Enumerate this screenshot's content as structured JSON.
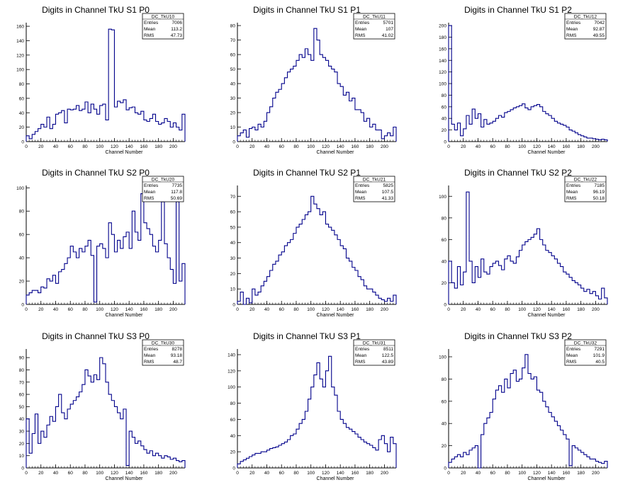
{
  "chart_data": [
    {
      "type": "histogram",
      "title": "Digits in Channel TkU S1 P0",
      "stats_name": "DC_TkU10",
      "entries": "7006",
      "mean": "113.2",
      "rms": "47.73",
      "xlabel": "Channel Number",
      "xlim": [
        0,
        216
      ],
      "xticks": [
        0,
        20,
        40,
        60,
        80,
        100,
        120,
        140,
        160,
        180,
        200
      ],
      "ylim": [
        0,
        165
      ],
      "yticks": [
        0,
        20,
        40,
        60,
        80,
        100,
        120,
        140,
        160
      ],
      "x_bin_starts": [
        0,
        4,
        8,
        12,
        16,
        20,
        24,
        28,
        32,
        36,
        40,
        44,
        48,
        52,
        56,
        60,
        64,
        68,
        72,
        76,
        80,
        84,
        88,
        92,
        96,
        100,
        104,
        108,
        112,
        116,
        120,
        124,
        128,
        132,
        136,
        140,
        144,
        148,
        152,
        156,
        160,
        164,
        168,
        172,
        176,
        180,
        184,
        188,
        192,
        196,
        200,
        204,
        208,
        212
      ],
      "values": [
        8,
        4,
        10,
        14,
        18,
        24,
        20,
        34,
        18,
        24,
        38,
        40,
        43,
        26,
        45,
        44,
        45,
        50,
        43,
        45,
        55,
        40,
        52,
        45,
        38,
        50,
        52,
        30,
        156,
        155,
        48,
        56,
        54,
        58,
        44,
        47,
        48,
        40,
        38,
        42,
        30,
        28,
        32,
        38,
        28,
        24,
        26,
        32,
        28,
        20,
        26,
        20,
        16,
        38
      ],
      "bin_width": 4
    },
    {
      "type": "histogram",
      "title": "Digits in Channel TkU S1 P1",
      "stats_name": "DC_TkU11",
      "entries": "5701",
      "mean": "107",
      "rms": "41.02",
      "xlabel": "Channel Number",
      "xlim": [
        0,
        216
      ],
      "xticks": [
        0,
        20,
        40,
        60,
        80,
        100,
        120,
        140,
        160,
        180,
        200
      ],
      "ylim": [
        0,
        82
      ],
      "yticks": [
        0,
        10,
        20,
        30,
        40,
        50,
        60,
        70,
        80
      ],
      "x_bin_starts": [
        0,
        4,
        8,
        12,
        16,
        20,
        24,
        28,
        32,
        36,
        40,
        44,
        48,
        52,
        56,
        60,
        64,
        68,
        72,
        76,
        80,
        84,
        88,
        92,
        96,
        100,
        104,
        108,
        112,
        116,
        120,
        124,
        128,
        132,
        136,
        140,
        144,
        148,
        152,
        156,
        160,
        164,
        168,
        172,
        176,
        180,
        184,
        188,
        192,
        196,
        200,
        204,
        208,
        212
      ],
      "values": [
        4,
        6,
        8,
        3,
        9,
        10,
        8,
        12,
        10,
        14,
        20,
        24,
        30,
        34,
        36,
        40,
        44,
        48,
        50,
        52,
        56,
        60,
        58,
        64,
        60,
        56,
        78,
        70,
        60,
        58,
        56,
        52,
        50,
        48,
        40,
        38,
        32,
        34,
        28,
        30,
        22,
        22,
        20,
        14,
        16,
        10,
        12,
        8,
        8,
        2,
        4,
        6,
        4,
        10
      ],
      "bin_width": 4
    },
    {
      "type": "histogram",
      "title": "Digits in Channel TkU S1 P2",
      "stats_name": "DC_TkU12",
      "entries": "7042",
      "mean": "92.87",
      "rms": "49.55",
      "xlabel": "Channel Number",
      "xlim": [
        0,
        216
      ],
      "xticks": [
        0,
        20,
        40,
        60,
        80,
        100,
        120,
        140,
        160,
        180,
        200
      ],
      "ylim": [
        0,
        205
      ],
      "yticks": [
        0,
        20,
        40,
        60,
        80,
        100,
        120,
        140,
        160,
        180,
        200
      ],
      "x_bin_starts": [
        0,
        4,
        8,
        12,
        16,
        20,
        24,
        28,
        32,
        36,
        40,
        44,
        48,
        52,
        56,
        60,
        64,
        68,
        72,
        76,
        80,
        84,
        88,
        92,
        96,
        100,
        104,
        108,
        112,
        116,
        120,
        124,
        128,
        132,
        136,
        140,
        144,
        148,
        152,
        156,
        160,
        164,
        168,
        172,
        176,
        180,
        184,
        188,
        192,
        196,
        200,
        204,
        208,
        212
      ],
      "values": [
        200,
        30,
        20,
        32,
        10,
        22,
        45,
        30,
        56,
        40,
        48,
        25,
        38,
        30,
        32,
        35,
        40,
        45,
        42,
        50,
        52,
        55,
        58,
        60,
        62,
        65,
        58,
        55,
        60,
        62,
        64,
        60,
        52,
        48,
        45,
        40,
        35,
        32,
        30,
        28,
        25,
        20,
        18,
        15,
        12,
        10,
        8,
        6,
        6,
        5,
        4,
        3,
        4,
        3
      ],
      "bin_width": 4
    },
    {
      "type": "histogram",
      "title": "Digits in Channel TkU S2 P0",
      "stats_name": "DC_TkU20",
      "entries": "7735",
      "mean": "117.8",
      "rms": "50.69",
      "xlabel": "Channel Number",
      "xlim": [
        0,
        216
      ],
      "xticks": [
        0,
        20,
        40,
        60,
        80,
        100,
        120,
        140,
        160,
        180,
        200
      ],
      "ylim": [
        0,
        102
      ],
      "yticks": [
        0,
        20,
        40,
        60,
        80,
        100
      ],
      "x_bin_starts": [
        0,
        4,
        8,
        12,
        16,
        20,
        24,
        28,
        32,
        36,
        40,
        44,
        48,
        52,
        56,
        60,
        64,
        68,
        72,
        76,
        80,
        84,
        88,
        92,
        96,
        100,
        104,
        108,
        112,
        116,
        120,
        124,
        128,
        132,
        136,
        140,
        144,
        148,
        152,
        156,
        160,
        164,
        168,
        172,
        176,
        180,
        184,
        188,
        192,
        196,
        200,
        204,
        208,
        212
      ],
      "values": [
        8,
        10,
        12,
        12,
        10,
        15,
        14,
        22,
        20,
        25,
        18,
        28,
        30,
        35,
        40,
        50,
        45,
        40,
        48,
        45,
        50,
        55,
        42,
        2,
        50,
        52,
        48,
        40,
        70,
        60,
        45,
        55,
        48,
        58,
        62,
        48,
        80,
        62,
        55,
        95,
        70,
        65,
        60,
        50,
        45,
        55,
        88,
        52,
        40,
        30,
        18,
        88,
        20,
        35
      ],
      "bin_width": 4
    },
    {
      "type": "histogram",
      "title": "Digits in Channel TkU S2 P1",
      "stats_name": "DC_TkU21",
      "entries": "5825",
      "mean": "107.5",
      "rms": "41.33",
      "xlabel": "Channel Number",
      "xlim": [
        0,
        216
      ],
      "xticks": [
        0,
        20,
        40,
        60,
        80,
        100,
        120,
        140,
        160,
        180,
        200
      ],
      "ylim": [
        0,
        77
      ],
      "yticks": [
        0,
        10,
        20,
        30,
        40,
        50,
        60,
        70
      ],
      "x_bin_starts": [
        0,
        4,
        8,
        12,
        16,
        20,
        24,
        28,
        32,
        36,
        40,
        44,
        48,
        52,
        56,
        60,
        64,
        68,
        72,
        76,
        80,
        84,
        88,
        92,
        96,
        100,
        104,
        108,
        112,
        116,
        120,
        124,
        128,
        132,
        136,
        140,
        144,
        148,
        152,
        156,
        160,
        164,
        168,
        172,
        176,
        180,
        184,
        188,
        192,
        196,
        200,
        204,
        208,
        212
      ],
      "values": [
        2,
        8,
        0,
        4,
        1,
        10,
        6,
        8,
        12,
        15,
        18,
        22,
        26,
        28,
        32,
        34,
        38,
        40,
        42,
        46,
        50,
        52,
        55,
        58,
        60,
        70,
        65,
        62,
        58,
        60,
        52,
        50,
        48,
        45,
        42,
        38,
        36,
        30,
        28,
        24,
        22,
        18,
        16,
        12,
        10,
        10,
        8,
        6,
        4,
        3,
        2,
        4,
        2,
        6
      ],
      "bin_width": 4
    },
    {
      "type": "histogram",
      "title": "Digits in Channel TkU S2 P2",
      "stats_name": "DC_TkU22",
      "entries": "7185",
      "mean": "96.19",
      "rms": "50.18",
      "xlabel": "Channel Number",
      "xlim": [
        0,
        216
      ],
      "xticks": [
        0,
        20,
        40,
        60,
        80,
        100,
        120,
        140,
        160,
        180,
        200
      ],
      "ylim": [
        0,
        110
      ],
      "yticks": [
        0,
        20,
        40,
        60,
        80,
        100
      ],
      "x_bin_starts": [
        0,
        4,
        8,
        12,
        16,
        20,
        24,
        28,
        32,
        36,
        40,
        44,
        48,
        52,
        56,
        60,
        64,
        68,
        72,
        76,
        80,
        84,
        88,
        92,
        96,
        100,
        104,
        108,
        112,
        116,
        120,
        124,
        128,
        132,
        136,
        140,
        144,
        148,
        152,
        156,
        160,
        164,
        168,
        172,
        176,
        180,
        184,
        188,
        192,
        196,
        200,
        204,
        208,
        212
      ],
      "values": [
        40,
        20,
        15,
        35,
        18,
        30,
        104,
        40,
        20,
        35,
        25,
        42,
        30,
        28,
        35,
        38,
        40,
        36,
        32,
        42,
        45,
        40,
        38,
        44,
        50,
        55,
        58,
        60,
        62,
        65,
        70,
        60,
        55,
        50,
        48,
        45,
        42,
        38,
        35,
        30,
        28,
        25,
        22,
        20,
        18,
        15,
        12,
        14,
        10,
        12,
        8,
        5,
        15,
        6
      ],
      "bin_width": 4
    },
    {
      "type": "histogram",
      "title": "Digits in Channel TkU S3 P0",
      "stats_name": "DC_TkU30",
      "entries": "8278",
      "mean": "93.18",
      "rms": "48.7",
      "xlabel": "Channel Number",
      "xlim": [
        0,
        216
      ],
      "xticks": [
        0,
        20,
        40,
        60,
        80,
        100,
        120,
        140,
        160,
        180,
        200
      ],
      "ylim": [
        0,
        97
      ],
      "yticks": [
        0,
        10,
        20,
        30,
        40,
        50,
        60,
        70,
        80,
        90
      ],
      "x_bin_starts": [
        0,
        4,
        8,
        12,
        16,
        20,
        24,
        28,
        32,
        36,
        40,
        44,
        48,
        52,
        56,
        60,
        64,
        68,
        72,
        76,
        80,
        84,
        88,
        92,
        96,
        100,
        104,
        108,
        112,
        116,
        120,
        124,
        128,
        132,
        136,
        140,
        144,
        148,
        152,
        156,
        160,
        164,
        168,
        172,
        176,
        180,
        184,
        188,
        192,
        196,
        200,
        204,
        208,
        212
      ],
      "values": [
        40,
        12,
        28,
        44,
        20,
        30,
        25,
        35,
        42,
        38,
        50,
        60,
        45,
        40,
        48,
        52,
        55,
        58,
        62,
        68,
        80,
        75,
        70,
        76,
        72,
        90,
        85,
        70,
        60,
        55,
        50,
        45,
        40,
        48,
        2,
        30,
        25,
        20,
        22,
        18,
        15,
        12,
        14,
        10,
        12,
        10,
        8,
        10,
        9,
        7,
        8,
        6,
        5,
        6
      ],
      "bin_width": 4
    },
    {
      "type": "histogram",
      "title": "Digits in Channel TkU S3 P1",
      "stats_name": "DC_TkU31",
      "entries": "8511",
      "mean": "122.5",
      "rms": "43.89",
      "xlabel": "Channel Number",
      "xlim": [
        0,
        216
      ],
      "xticks": [
        0,
        20,
        40,
        60,
        80,
        100,
        120,
        140,
        160,
        180,
        200
      ],
      "ylim": [
        0,
        147
      ],
      "yticks": [
        0,
        20,
        40,
        60,
        80,
        100,
        120,
        140
      ],
      "x_bin_starts": [
        0,
        4,
        8,
        12,
        16,
        20,
        24,
        28,
        32,
        36,
        40,
        44,
        48,
        52,
        56,
        60,
        64,
        68,
        72,
        76,
        80,
        84,
        88,
        92,
        96,
        100,
        104,
        108,
        112,
        116,
        120,
        124,
        128,
        132,
        136,
        140,
        144,
        148,
        152,
        156,
        160,
        164,
        168,
        172,
        176,
        180,
        184,
        188,
        192,
        196,
        200,
        204,
        208,
        212
      ],
      "values": [
        5,
        8,
        10,
        12,
        14,
        16,
        18,
        18,
        20,
        20,
        22,
        24,
        25,
        26,
        28,
        30,
        32,
        35,
        40,
        42,
        48,
        55,
        60,
        70,
        85,
        100,
        115,
        130,
        110,
        100,
        120,
        138,
        100,
        90,
        70,
        60,
        55,
        50,
        48,
        45,
        42,
        38,
        35,
        32,
        30,
        28,
        25,
        22,
        35,
        40,
        30,
        20,
        38,
        30
      ],
      "bin_width": 4
    },
    {
      "type": "histogram",
      "title": "Digits in Channel TkU S3 P2",
      "stats_name": "DC_TkU32",
      "entries": "7291",
      "mean": "101.9",
      "rms": "40.5",
      "xlabel": "Channel Number",
      "xlim": [
        0,
        216
      ],
      "xticks": [
        0,
        20,
        40,
        60,
        80,
        100,
        120,
        140,
        160,
        180,
        200
      ],
      "ylim": [
        0,
        107
      ],
      "yticks": [
        0,
        20,
        40,
        60,
        80,
        100
      ],
      "x_bin_starts": [
        0,
        4,
        8,
        12,
        16,
        20,
        24,
        28,
        32,
        36,
        40,
        44,
        48,
        52,
        56,
        60,
        64,
        68,
        72,
        76,
        80,
        84,
        88,
        92,
        96,
        100,
        104,
        108,
        112,
        116,
        120,
        124,
        128,
        132,
        136,
        140,
        144,
        148,
        152,
        156,
        160,
        164,
        168,
        172,
        176,
        180,
        184,
        188,
        192,
        196,
        200,
        204,
        208,
        212
      ],
      "values": [
        5,
        8,
        10,
        12,
        10,
        14,
        12,
        16,
        18,
        20,
        0,
        30,
        40,
        45,
        50,
        62,
        70,
        74,
        68,
        80,
        72,
        85,
        88,
        78,
        80,
        90,
        102,
        85,
        80,
        82,
        70,
        68,
        60,
        55,
        50,
        46,
        42,
        38,
        34,
        30,
        26,
        2,
        20,
        18,
        16,
        14,
        12,
        10,
        8,
        8,
        6,
        5,
        4,
        6
      ],
      "bin_width": 4
    }
  ],
  "style": {
    "line_color": "#00008b",
    "axis_color": "#000000",
    "background": "#ffffff"
  },
  "labels": {
    "entries": "Entries",
    "mean": "Mean",
    "rms": "RMS"
  }
}
